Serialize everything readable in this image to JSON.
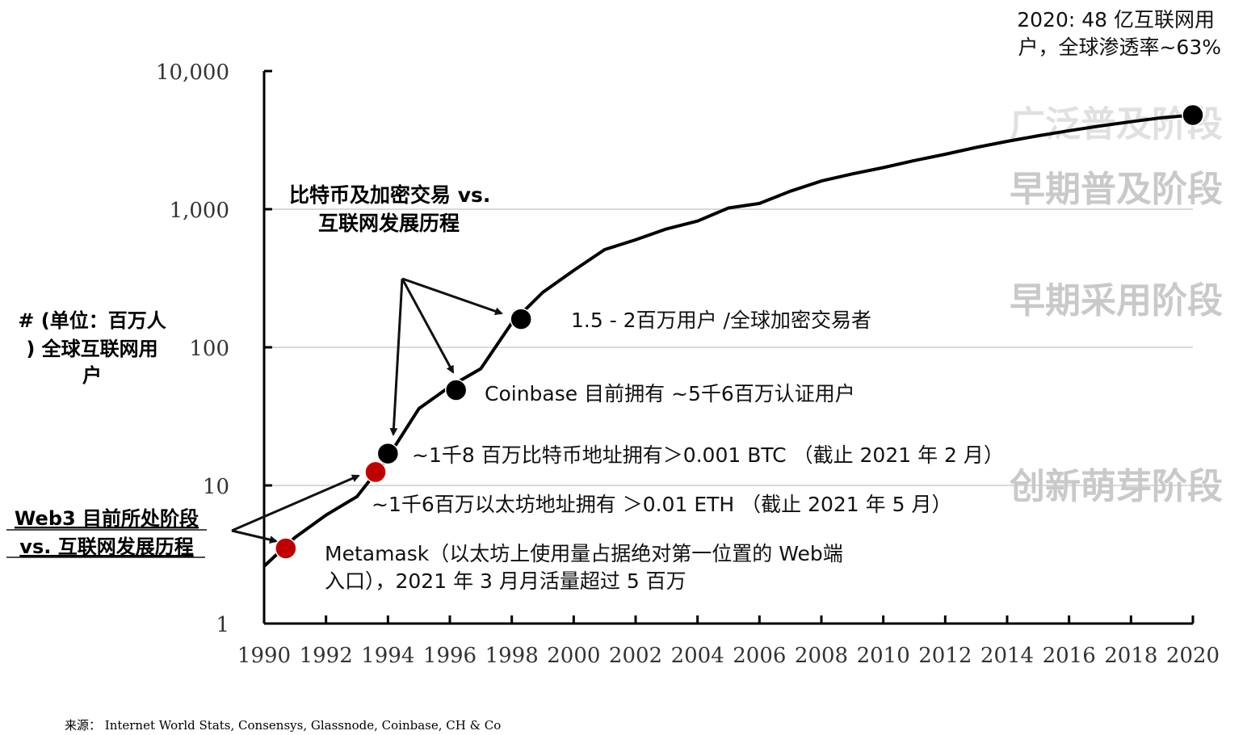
{
  "chart_data": {
    "type": "line",
    "scale": "log",
    "ylim": [
      1,
      10000
    ],
    "xlim": [
      1990,
      2020
    ],
    "ylabel_lines": [
      "# (单位：百万人",
      ") 全球互联网用",
      "户"
    ],
    "y_ticks": [
      "10,000",
      "1,000",
      "100",
      "10",
      "1"
    ],
    "x_ticks": [
      "1990",
      "1992",
      "1994",
      "1996",
      "1998",
      "2000",
      "2002",
      "2004",
      "2006",
      "2008",
      "2010",
      "2012",
      "2014",
      "2016",
      "2018",
      "2020"
    ],
    "series": [
      {
        "x": [
          1990,
          1991,
          1992,
          1993,
          1994,
          1995,
          1996,
          1997,
          1998,
          1999,
          2000,
          2001,
          2002,
          2003,
          2004,
          2005,
          2006,
          2007,
          2008,
          2009,
          2010,
          2011,
          2012,
          2013,
          2014,
          2015,
          2016,
          2017,
          2018,
          2019,
          2020
        ],
        "y": [
          2.6,
          4.2,
          6.1,
          8.3,
          16,
          36,
          52,
          70,
          150,
          250,
          360,
          510,
          600,
          720,
          820,
          1020,
          1100,
          1350,
          1600,
          1800,
          2000,
          2250,
          2500,
          2800,
          3100,
          3400,
          3700,
          4000,
          4300,
          4600,
          4800
        ]
      }
    ],
    "points": [
      {
        "x": 1990.7,
        "y": 3.5,
        "color": "#c00000",
        "label_lines": [
          "Metamask（以太坊上使用量占据绝对第一位置的 Web端",
          "入口），2021 年 3 月月活量超过 5 百万"
        ]
      },
      {
        "x": 1993.6,
        "y": 12.5,
        "color": "#c00000",
        "label_lines": [
          "~1千6百万以太坊地址拥有 ＞0.01 ETH （截止 2021 年 5 月）"
        ]
      },
      {
        "x": 1994.0,
        "y": 17,
        "color": "#000000",
        "label_lines": [
          "~1千8 百万比特币地址拥有＞0.001 BTC （截止 2021 年 2 月）"
        ]
      },
      {
        "x": 1996.2,
        "y": 49,
        "color": "#000000",
        "label_lines": [
          "Coinbase 目前拥有 ~5千6百万认证用户"
        ]
      },
      {
        "x": 1998.3,
        "y": 160,
        "color": "#000000",
        "label_lines": [
          "1.5 - 2百万用户 /全球加密交易者"
        ]
      },
      {
        "x": 2020.0,
        "y": 4800,
        "color": "#000000",
        "label_lines": []
      }
    ],
    "endpoint_note_lines": [
      "2020: 48 亿互联网用",
      "户，全球渗透率~63%"
    ],
    "stages": [
      "广泛普及阶段",
      "早期普及阶段",
      "早期采用阶段",
      "创新萌芽阶段"
    ],
    "thresholds": [
      10,
      100,
      1000
    ],
    "grid": false
  },
  "annotations": {
    "bitcoin_title_lines": [
      "比特币及加密交易 vs.",
      "互联网发展历程"
    ],
    "web3_title_lines": [
      "Web3 目前所处阶段",
      "vs. 互联网发展历程"
    ]
  },
  "source": "来源： Internet World Stats, Consensys, Glassnode, Coinbase, CH & Co"
}
